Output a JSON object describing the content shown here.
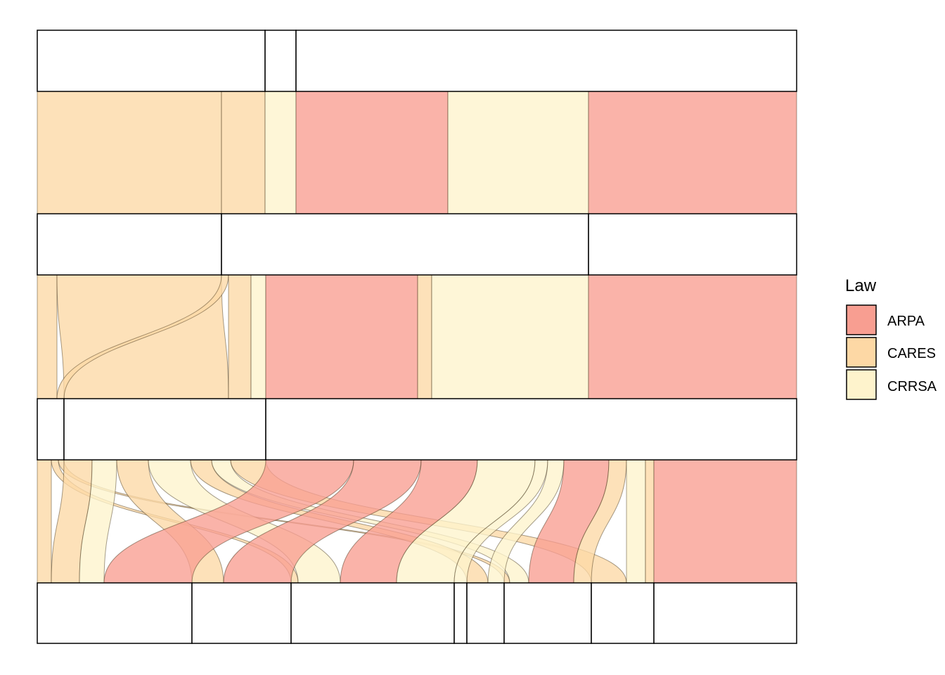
{
  "chart_data": {
    "type": "alluvial",
    "title": "",
    "xlabel": "",
    "ylabel": "",
    "legend": {
      "title": "Law",
      "position": "right",
      "entries": [
        {
          "name": "ARPA",
          "color": "#F89E91"
        },
        {
          "name": "CARES",
          "color": "#FDD8A5"
        },
        {
          "name": "CRRSA",
          "color": "#FEF3CC"
        }
      ]
    },
    "scale_total": 1080,
    "axes": [
      {
        "index": 1,
        "strata": [
          {
            "label": "",
            "size": 324
          },
          {
            "label": "",
            "size": 44
          },
          {
            "label": "",
            "size": 712
          }
        ]
      },
      {
        "index": 2,
        "strata": [
          {
            "label": "",
            "size": 262
          },
          {
            "label": "",
            "size": 522
          },
          {
            "label": "",
            "size": 296
          }
        ]
      },
      {
        "index": 3,
        "strata": [
          {
            "label": "",
            "size": 38
          },
          {
            "label": "",
            "size": 287
          },
          {
            "label": "",
            "size": 755
          }
        ]
      },
      {
        "index": 4,
        "strata": [
          {
            "label": "",
            "size": 220
          },
          {
            "label": "",
            "size": 141
          },
          {
            "label": "",
            "size": 232
          },
          {
            "label": "",
            "size": 18
          },
          {
            "label": "",
            "size": 53
          },
          {
            "label": "",
            "size": 124
          },
          {
            "label": "",
            "size": 89
          },
          {
            "label": "",
            "size": 203
          }
        ]
      }
    ],
    "flows_1_2": [
      {
        "law": "CARES",
        "from": 0,
        "to": 0,
        "value": 262
      },
      {
        "law": "CARES",
        "from": 0,
        "to": 1,
        "value": 62
      },
      {
        "law": "CRRSA",
        "from": 1,
        "to": 1,
        "value": 44
      },
      {
        "law": "ARPA",
        "from": 2,
        "to": 1,
        "value": 216
      },
      {
        "law": "CRRSA",
        "from": 2,
        "to": 1,
        "value": 200
      },
      {
        "law": "ARPA",
        "from": 2,
        "to": 2,
        "value": 296
      }
    ],
    "flows_2_3": [
      {
        "law": "CARES",
        "from": 0,
        "to": 0,
        "value": 28
      },
      {
        "law": "CARES",
        "from": 0,
        "to": 1,
        "value": 234
      },
      {
        "law": "CARES",
        "from": 1,
        "to": 0,
        "value": 10
      },
      {
        "law": "CARES",
        "from": 1,
        "to": 1,
        "value": 32
      },
      {
        "law": "CRRSA",
        "from": 1,
        "to": 1,
        "value": 21
      },
      {
        "law": "ARPA",
        "from": 1,
        "to": 2,
        "value": 216
      },
      {
        "law": "CARES",
        "from": 1,
        "to": 2,
        "value": 20
      },
      {
        "law": "CRRSA",
        "from": 1,
        "to": 2,
        "value": 223
      },
      {
        "law": "ARPA",
        "from": 2,
        "to": 2,
        "value": 296
      }
    ],
    "flows_3_4": [
      {
        "law": "CARES",
        "from": 0,
        "to": 0,
        "value": 20
      },
      {
        "law": "CARES",
        "from": 0,
        "to": 2,
        "value": 10
      },
      {
        "law": "CARES",
        "from": 0,
        "to": 5,
        "value": 8
      },
      {
        "law": "CARES",
        "from": 1,
        "to": 0,
        "value": 40
      },
      {
        "law": "CRRSA",
        "from": 1,
        "to": 0,
        "value": 35
      },
      {
        "law": "CARES",
        "from": 1,
        "to": 1,
        "value": 45
      },
      {
        "law": "CRRSA",
        "from": 1,
        "to": 2,
        "value": 60
      },
      {
        "law": "CARES",
        "from": 1,
        "to": 4,
        "value": 30
      },
      {
        "law": "CRRSA",
        "from": 1,
        "to": 5,
        "value": 27
      },
      {
        "law": "CARES",
        "from": 1,
        "to": 6,
        "value": 50
      },
      {
        "law": "ARPA",
        "from": 2,
        "to": 0,
        "value": 125
      },
      {
        "law": "ARPA",
        "from": 2,
        "to": 1,
        "value": 96
      },
      {
        "law": "ARPA",
        "from": 2,
        "to": 2,
        "value": 80
      },
      {
        "law": "CRRSA",
        "from": 2,
        "to": 2,
        "value": 82
      },
      {
        "law": "CRRSA",
        "from": 2,
        "to": 3,
        "value": 18
      },
      {
        "law": "CRRSA",
        "from": 2,
        "to": 4,
        "value": 23
      },
      {
        "law": "ARPA",
        "from": 2,
        "to": 5,
        "value": 64
      },
      {
        "law": "CARES",
        "from": 2,
        "to": 5,
        "value": 25
      },
      {
        "law": "CRRSA",
        "from": 2,
        "to": 6,
        "value": 27
      },
      {
        "law": "CARES",
        "from": 2,
        "to": 6,
        "value": 12
      },
      {
        "law": "ARPA",
        "from": 2,
        "to": 7,
        "value": 203
      }
    ]
  }
}
